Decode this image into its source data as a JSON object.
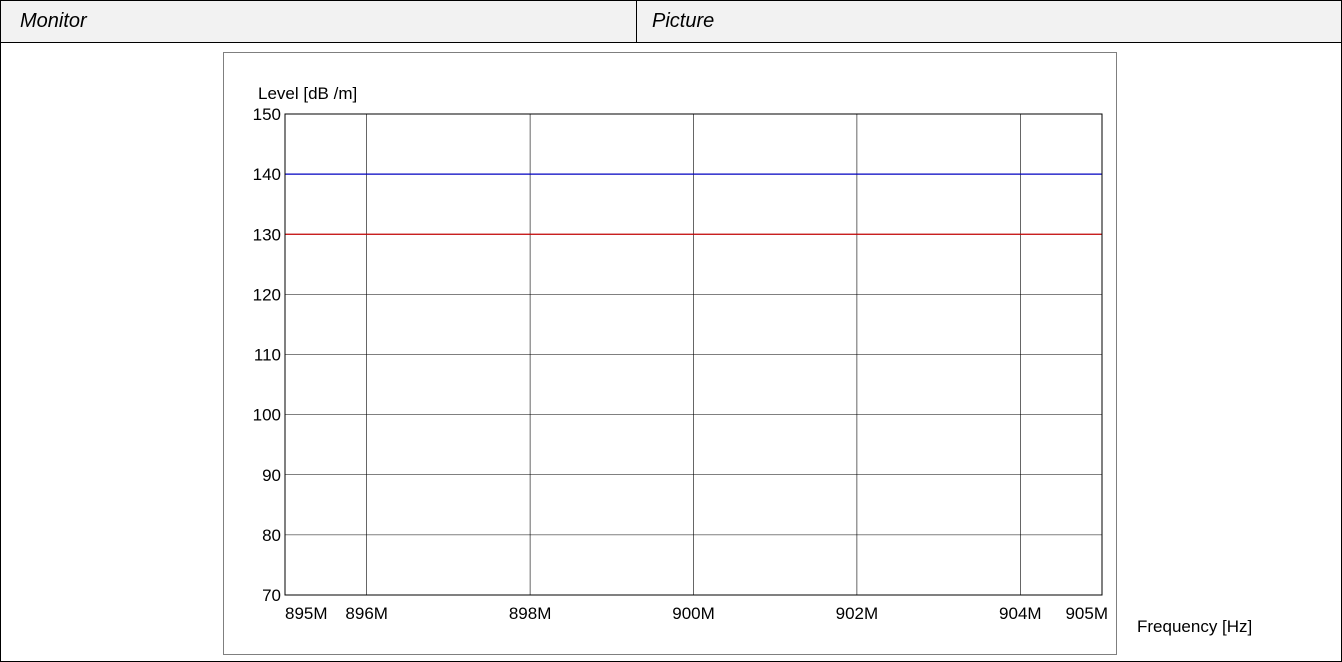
{
  "header": {
    "left_label": "Monitor",
    "right_label": "Picture"
  },
  "chart_data": {
    "type": "line",
    "title": "",
    "ylabel": "Level [dB /m]",
    "xlabel": "Frequency [Hz]",
    "ylim": [
      70,
      150
    ],
    "xlim": [
      895,
      905
    ],
    "y_ticks": [
      70,
      80,
      90,
      100,
      110,
      120,
      130,
      140,
      150
    ],
    "x_ticks": [
      {
        "value": 895,
        "label": "895M"
      },
      {
        "value": 896,
        "label": "896M"
      },
      {
        "value": 898,
        "label": "898M"
      },
      {
        "value": 900,
        "label": "900M"
      },
      {
        "value": 902,
        "label": "902M"
      },
      {
        "value": 904,
        "label": "904M"
      },
      {
        "value": 905,
        "label": "905M"
      }
    ],
    "grid": true,
    "series": [
      {
        "color": "#0000c0",
        "x": [
          895,
          905
        ],
        "y": [
          140,
          140
        ]
      },
      {
        "color": "#c00000",
        "x": [
          895,
          905
        ],
        "y": [
          130,
          130
        ]
      }
    ]
  }
}
